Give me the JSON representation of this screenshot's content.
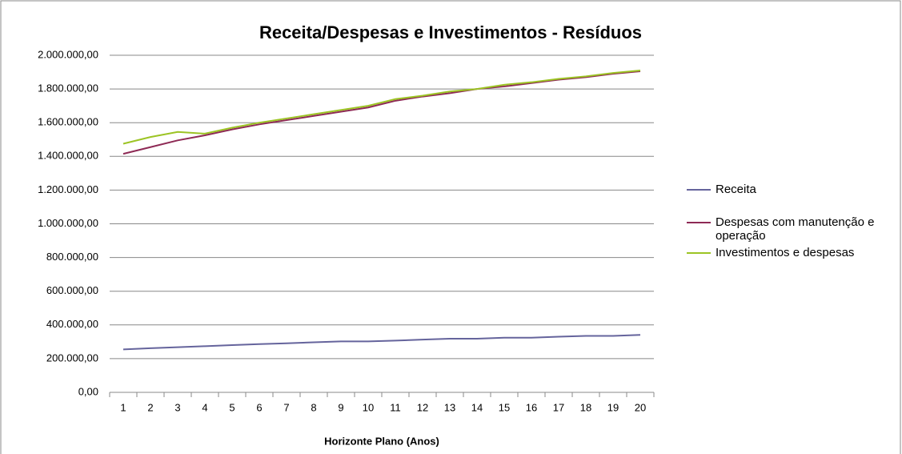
{
  "chart_data": {
    "type": "line",
    "title": "Receita/Despesas e Investimentos - Resíduos",
    "x_label": "Horizonte Plano (Anos)",
    "categories": [
      "1",
      "2",
      "3",
      "4",
      "5",
      "6",
      "7",
      "8",
      "9",
      "10",
      "11",
      "12",
      "13",
      "14",
      "15",
      "16",
      "17",
      "18",
      "19",
      "20"
    ],
    "ylim": [
      0,
      2000000
    ],
    "yticks": [
      {
        "value": 0,
        "label": "0,00"
      },
      {
        "value": 200000,
        "label": "200.000,00"
      },
      {
        "value": 400000,
        "label": "400.000,00"
      },
      {
        "value": 600000,
        "label": "600.000,00"
      },
      {
        "value": 800000,
        "label": "800.000,00"
      },
      {
        "value": 1000000,
        "label": "1.000.000,00"
      },
      {
        "value": 1200000,
        "label": "1.200.000,00"
      },
      {
        "value": 1400000,
        "label": "1.400.000,00"
      },
      {
        "value": 1600000,
        "label": "1.600.000,00"
      },
      {
        "value": 1800000,
        "label": "1.800.000,00"
      },
      {
        "value": 2000000,
        "label": "2.000.000,00"
      }
    ],
    "grid": true,
    "legend": "right",
    "series": [
      {
        "name": "Receita",
        "color": "#65649c",
        "values": [
          255000,
          262000,
          268000,
          274000,
          280000,
          286000,
          291000,
          297000,
          302000,
          302000,
          307000,
          313000,
          318000,
          318000,
          324000,
          324000,
          330000,
          335000,
          335000,
          341000
        ]
      },
      {
        "name": "Despesas com manutenção e operação",
        "color": "#8e2a55",
        "values": [
          1415000,
          1455000,
          1495000,
          1525000,
          1560000,
          1590000,
          1615000,
          1640000,
          1665000,
          1690000,
          1730000,
          1755000,
          1775000,
          1800000,
          1815000,
          1835000,
          1855000,
          1870000,
          1890000,
          1905000
        ]
      },
      {
        "name": "Investimentos e despesas",
        "color": "#9cc424",
        "values": [
          1475000,
          1515000,
          1545000,
          1535000,
          1570000,
          1600000,
          1625000,
          1650000,
          1675000,
          1700000,
          1740000,
          1760000,
          1785000,
          1800000,
          1825000,
          1840000,
          1860000,
          1875000,
          1895000,
          1910000
        ]
      }
    ]
  }
}
